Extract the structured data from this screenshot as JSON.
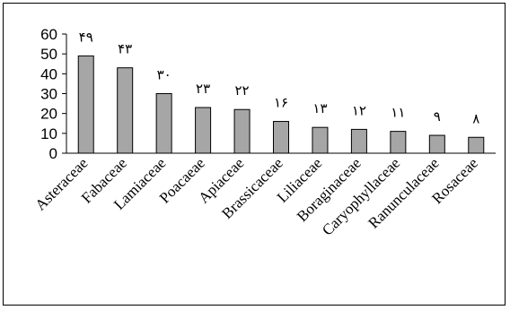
{
  "chart_data": {
    "type": "bar",
    "title": "",
    "xlabel": "",
    "ylabel": "",
    "categories": [
      "Asteraceae",
      "Fabaceae",
      "Lamiaceae",
      "Poacaeae",
      "Apiaceae",
      "Brassicaceae",
      "Liliaceae",
      "Boraginaceae",
      "Caryophyllaceae",
      "Ranunculaceae",
      "Rosaceae"
    ],
    "values": [
      49,
      43,
      30,
      23,
      22,
      16,
      13,
      12,
      11,
      9,
      8
    ],
    "value_labels": [
      "۴۹",
      "۴۳",
      "۳۰",
      "۲۳",
      "۲۲",
      "۱۶",
      "۱۳",
      "۱۲",
      "۱۱",
      "۹",
      "۸"
    ],
    "ylim": [
      0,
      60
    ],
    "yticks": [
      0,
      10,
      20,
      30,
      40,
      50,
      60
    ],
    "grid": false,
    "legend": "none",
    "colors": {
      "bar_fill": "#a6a6a6",
      "bar_stroke": "#000000",
      "axis": "#000000"
    }
  }
}
